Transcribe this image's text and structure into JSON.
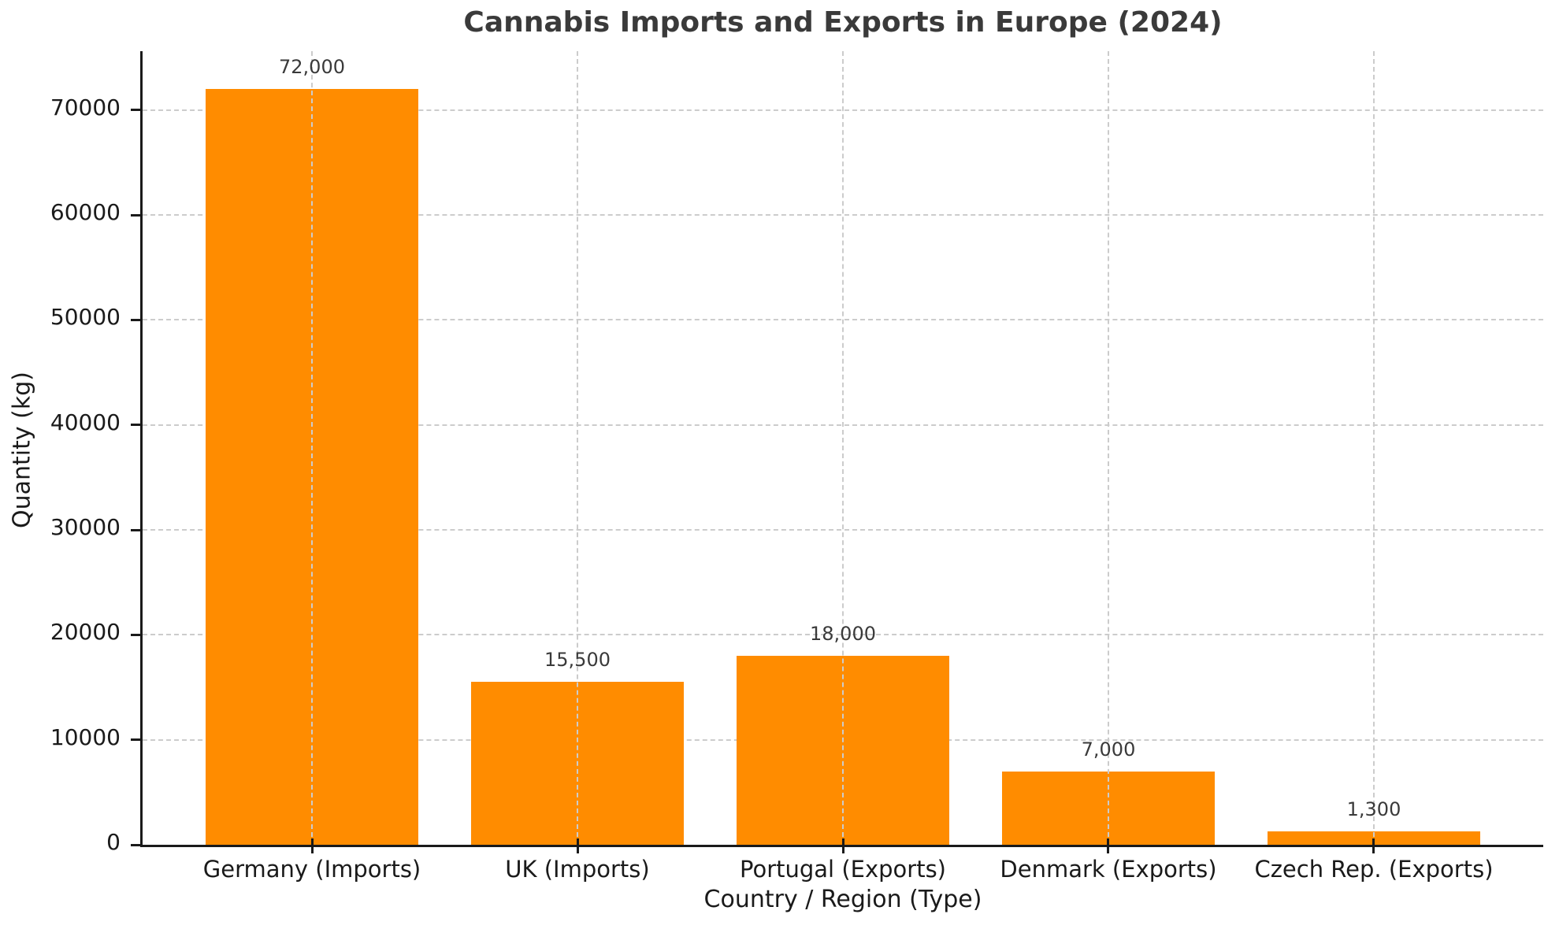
{
  "chart_data": {
    "type": "bar",
    "title": "Cannabis Imports and Exports in Europe (2024)",
    "xlabel": "Country / Region (Type)",
    "ylabel": "Quantity (kg)",
    "categories": [
      "Germany (Imports)",
      "UK (Imports)",
      "Portugal (Exports)",
      "Denmark (Exports)",
      "Czech Rep. (Exports)"
    ],
    "values": [
      72000,
      15500,
      18000,
      7000,
      1300
    ],
    "value_labels": [
      "72,000",
      "15,500",
      "18,000",
      "7,000",
      "1,300"
    ],
    "yticks": [
      0,
      10000,
      20000,
      30000,
      40000,
      50000,
      60000,
      70000
    ],
    "ylim": [
      0,
      75600
    ],
    "bar_color": "#FF8C00",
    "grid": "dashed, light gray, horizontal at y-ticks and vertical at bar centers",
    "legend_position": "none"
  }
}
